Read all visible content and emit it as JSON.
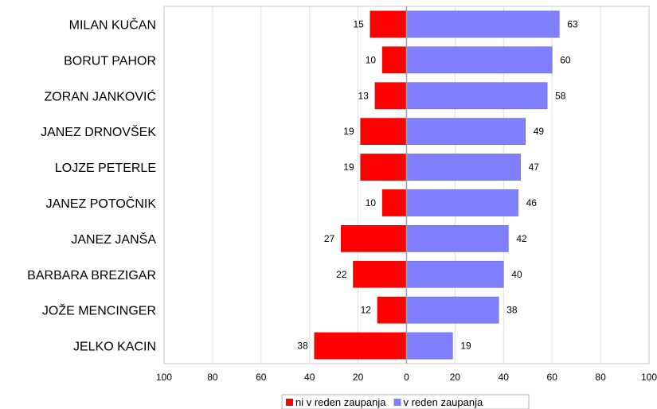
{
  "chart_data": {
    "type": "bar",
    "orientation": "horizontal-diverging",
    "categories": [
      "MILAN KUČAN",
      "BORUT PAHOR",
      "ZORAN JANKOVIĆ",
      "JANEZ DRNOVŠEK",
      "LOJZE PETERLE",
      "JANEZ POTOČNIK",
      "JANEZ JANŠA",
      "BARBARA BREZIGAR",
      "JOŽE MENCINGER",
      "JELKO KACIN"
    ],
    "series": [
      {
        "name": "ni v reden zaupanja",
        "color": "#ff0000",
        "direction": "left",
        "values": [
          15,
          10,
          13,
          19,
          19,
          10,
          27,
          22,
          12,
          38
        ]
      },
      {
        "name": "v reden zaupanja",
        "color": "#8080ff",
        "direction": "right",
        "values": [
          63,
          60,
          58,
          49,
          47,
          46,
          42,
          40,
          38,
          19
        ]
      }
    ],
    "xlim": [
      -100,
      100
    ],
    "xticks": [
      -100,
      -80,
      -60,
      -40,
      -20,
      0,
      20,
      40,
      60,
      80,
      100
    ],
    "xtick_labels": [
      "100",
      "80",
      "60",
      "40",
      "20",
      "0",
      "20",
      "40",
      "60",
      "80",
      "100"
    ],
    "grid": true,
    "legend_position": "bottom"
  }
}
